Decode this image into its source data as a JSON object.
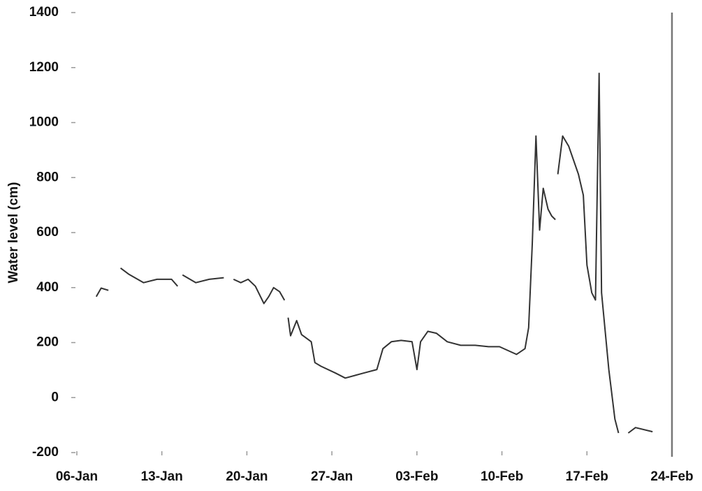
{
  "chart_data": {
    "type": "line",
    "y_label": "Water level (cm)",
    "x": [
      1.6,
      2.0,
      2.6,
      null,
      3.6,
      4.3,
      5.5,
      6.6,
      7.8,
      8.3,
      null,
      8.7,
      9.8,
      10.9,
      12.1,
      null,
      12.9,
      13.5,
      14.1,
      14.7,
      15.4,
      15.8,
      16.2,
      16.7,
      17.1,
      null,
      17.4,
      17.6,
      18.1,
      18.5,
      19.3,
      19.6,
      20.1,
      21.3,
      22.1,
      23.6,
      24.7,
      25.2,
      25.9,
      26.7,
      27.6,
      28.0,
      28.3,
      28.9,
      29.6,
      30.5,
      31.6,
      32.8,
      33.9,
      34.8,
      36.2,
      36.9,
      37.2,
      37.5,
      37.8,
      38.1,
      38.4,
      38.8,
      39.1,
      39.4,
      null,
      39.6,
      40.0,
      40.5,
      41.3,
      41.7,
      42.0,
      42.4,
      42.7,
      43.0,
      43.2,
      43.8,
      44.3,
      44.6,
      null,
      45.4,
      46.0,
      47.4
    ],
    "series": [
      {
        "name": "Water level",
        "color": "#333333",
        "values": [
          367,
          398,
          390,
          null,
          471,
          448,
          418,
          430,
          430,
          405,
          null,
          446,
          418,
          430,
          436,
          null,
          430,
          418,
          430,
          405,
          342,
          367,
          400,
          385,
          354,
          null,
          291,
          225,
          280,
          229,
          203,
          127,
          114,
          89,
          71,
          89,
          102,
          178,
          203,
          208,
          203,
          102,
          203,
          241,
          234,
          203,
          190,
          190,
          185,
          185,
          157,
          178,
          254,
          558,
          951,
          609,
          761,
          685,
          660,
          647,
          null,
          812,
          951,
          914,
          812,
          736,
          482,
          381,
          355,
          1179,
          381,
          102,
          -78,
          -129,
          null,
          -129,
          -109,
          -124
        ]
      }
    ],
    "xlim": [
      0,
      49
    ],
    "xticks": [
      {
        "value": 0,
        "label": "06-Jan"
      },
      {
        "value": 7,
        "label": "13-Jan"
      },
      {
        "value": 14,
        "label": "20-Jan"
      },
      {
        "value": 21,
        "label": "27-Jan"
      },
      {
        "value": 28,
        "label": "03-Feb"
      },
      {
        "value": 35,
        "label": "10-Feb"
      },
      {
        "value": 42,
        "label": "17-Feb"
      },
      {
        "value": 49,
        "label": "24-Feb"
      }
    ],
    "ylim": [
      -200,
      1400
    ],
    "yticks": [
      -200,
      0,
      200,
      400,
      600,
      800,
      1000,
      1200,
      1400
    ]
  }
}
